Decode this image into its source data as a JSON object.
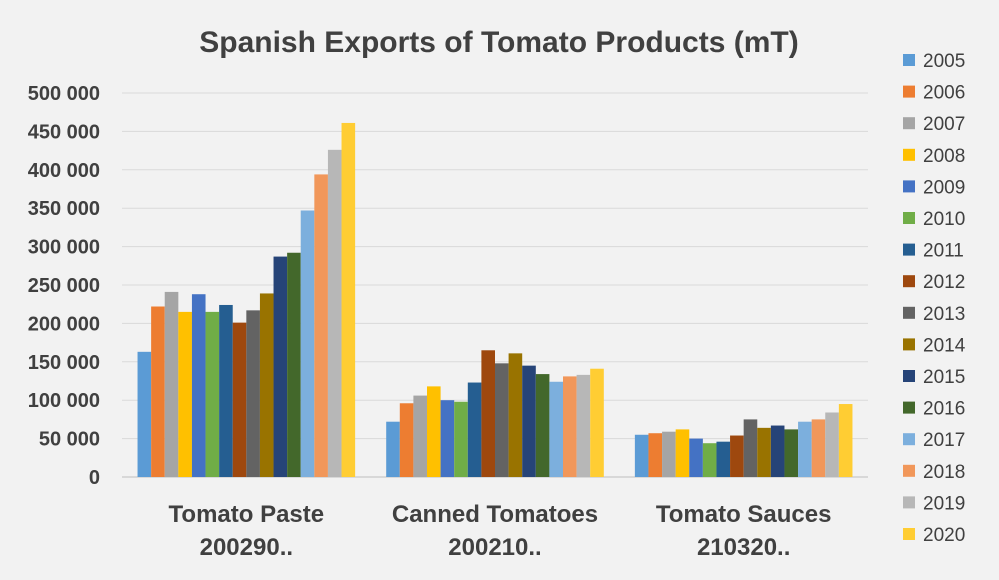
{
  "chart_data": {
    "type": "bar",
    "title": "Spanish Exports of Tomato Products (mT)",
    "xlabel": "",
    "ylabel": "",
    "ylim": [
      0,
      500000
    ],
    "yticks": [
      "0",
      "50 000",
      "100 000",
      "150 000",
      "200 000",
      "250 000",
      "300 000",
      "350 000",
      "400 000",
      "450 000",
      "500 000"
    ],
    "categories": [
      [
        "Tomato Paste",
        "200290.."
      ],
      [
        "Canned Tomatoes",
        "200210.."
      ],
      [
        "Tomato Sauces",
        "210320.."
      ]
    ],
    "grid": true,
    "legend_position": "right",
    "series": [
      {
        "name": "2005",
        "color": "#5b9bd5",
        "values": [
          163000,
          72000,
          55000
        ]
      },
      {
        "name": "2006",
        "color": "#ed7d31",
        "values": [
          222000,
          96000,
          57000
        ]
      },
      {
        "name": "2007",
        "color": "#a5a5a5",
        "values": [
          241000,
          106000,
          59000
        ]
      },
      {
        "name": "2008",
        "color": "#ffc000",
        "values": [
          215000,
          118000,
          62000
        ]
      },
      {
        "name": "2009",
        "color": "#4472c4",
        "values": [
          238000,
          100000,
          50000
        ]
      },
      {
        "name": "2010",
        "color": "#70ad47",
        "values": [
          215000,
          98000,
          44000
        ]
      },
      {
        "name": "2011",
        "color": "#255e91",
        "values": [
          224000,
          123000,
          46000
        ]
      },
      {
        "name": "2012",
        "color": "#9e480e",
        "values": [
          201000,
          165000,
          54000
        ]
      },
      {
        "name": "2013",
        "color": "#636363",
        "values": [
          217000,
          148000,
          75000
        ]
      },
      {
        "name": "2014",
        "color": "#997300",
        "values": [
          239000,
          161000,
          64000
        ]
      },
      {
        "name": "2015",
        "color": "#264478",
        "values": [
          287000,
          145000,
          67000
        ]
      },
      {
        "name": "2016",
        "color": "#43682b",
        "values": [
          292000,
          134000,
          62000
        ]
      },
      {
        "name": "2017",
        "color": "#7cafdd",
        "values": [
          347000,
          124000,
          72000
        ]
      },
      {
        "name": "2018",
        "color": "#f1975a",
        "values": [
          394000,
          131000,
          75000
        ]
      },
      {
        "name": "2019",
        "color": "#b7b7b7",
        "values": [
          426000,
          133000,
          84000
        ]
      },
      {
        "name": "2020",
        "color": "#ffcd33",
        "values": [
          461000,
          141000,
          95000
        ]
      }
    ]
  }
}
